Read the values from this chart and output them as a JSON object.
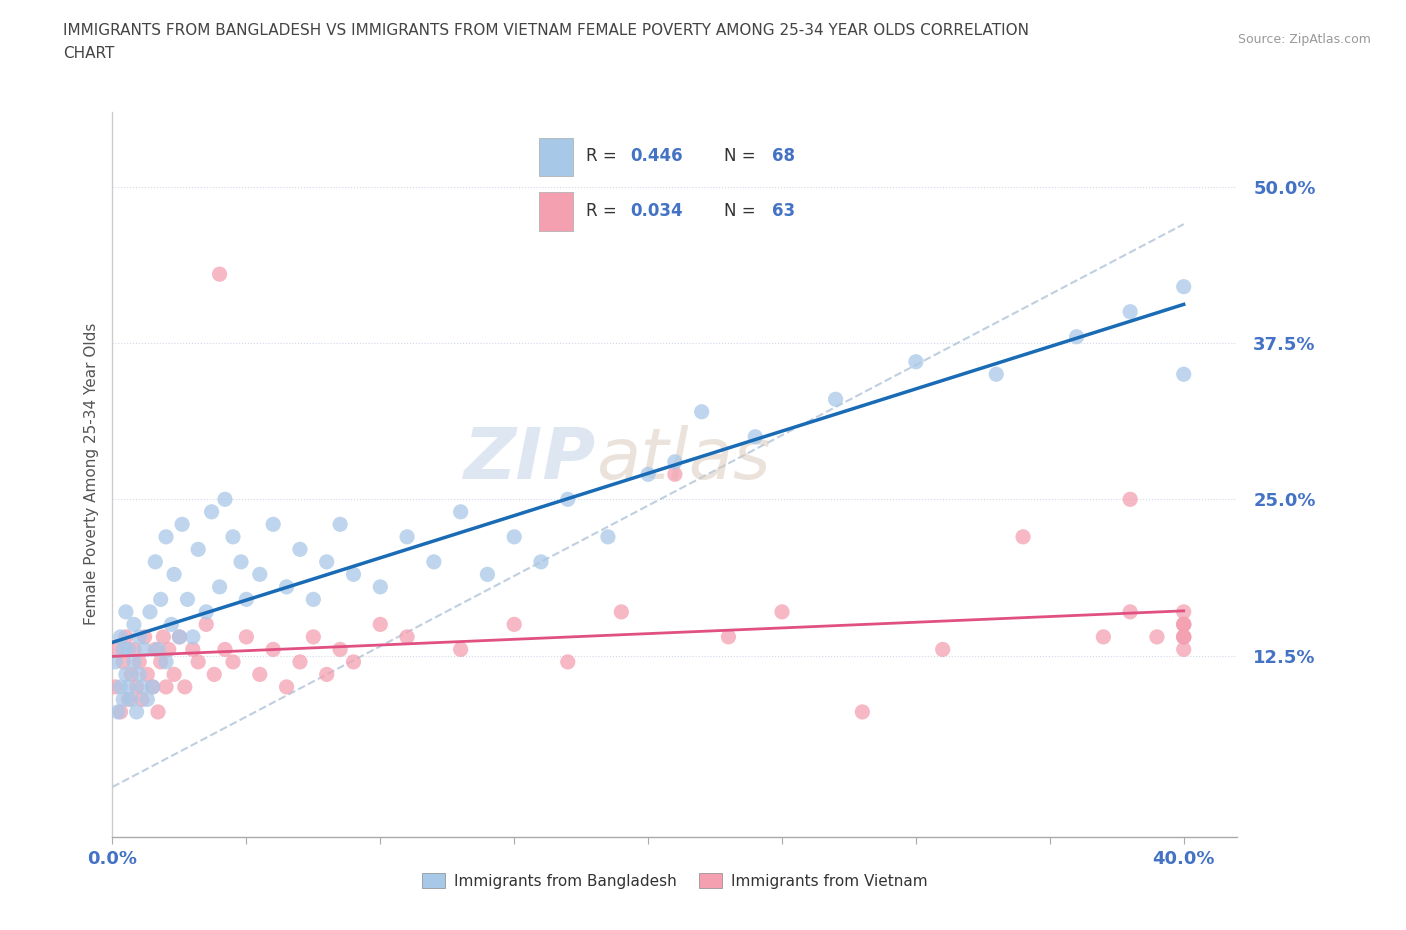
{
  "title_line1": "IMMIGRANTS FROM BANGLADESH VS IMMIGRANTS FROM VIETNAM FEMALE POVERTY AMONG 25-34 YEAR OLDS CORRELATION",
  "title_line2": "CHART",
  "source_text": "Source: ZipAtlas.com",
  "ylabel": "Female Poverty Among 25-34 Year Olds",
  "xlim": [
    0.0,
    0.42
  ],
  "ylim": [
    -0.02,
    0.56
  ],
  "ytick_positions": [
    0.0,
    0.125,
    0.25,
    0.375,
    0.5
  ],
  "yticklabels": [
    "",
    "12.5%",
    "25.0%",
    "37.5%",
    "50.0%"
  ],
  "xtick_positions": [
    0.0,
    0.05,
    0.1,
    0.15,
    0.2,
    0.25,
    0.3,
    0.35,
    0.4
  ],
  "xticklabels": [
    "0.0%",
    "",
    "",
    "",
    "",
    "",
    "",
    "",
    "40.0%"
  ],
  "bangladesh_color": "#a8c8e8",
  "vietnam_color": "#f4a0b0",
  "bangladesh_line_color": "#1a6bb5",
  "vietnam_line_color": "#e05080",
  "dash_line_color": "#b0c4d8",
  "R_bangladesh": "0.446",
  "N_bangladesh": "68",
  "R_vietnam": "0.034",
  "N_vietnam": "63",
  "legend_label_bangladesh": "Immigrants from Bangladesh",
  "legend_label_vietnam": "Immigrants from Vietnam",
  "watermark_zip": "ZIP",
  "watermark_atlas": "atlas",
  "tick_color": "#4472c4",
  "axis_color": "#4472c4",
  "bd_x": [
    0.001,
    0.002,
    0.003,
    0.003,
    0.004,
    0.004,
    0.005,
    0.005,
    0.006,
    0.006,
    0.007,
    0.008,
    0.008,
    0.009,
    0.01,
    0.01,
    0.011,
    0.012,
    0.013,
    0.014,
    0.015,
    0.016,
    0.017,
    0.018,
    0.02,
    0.02,
    0.022,
    0.023,
    0.025,
    0.026,
    0.028,
    0.03,
    0.032,
    0.035,
    0.037,
    0.04,
    0.042,
    0.045,
    0.048,
    0.05,
    0.055,
    0.06,
    0.065,
    0.07,
    0.075,
    0.08,
    0.085,
    0.09,
    0.1,
    0.11,
    0.12,
    0.13,
    0.14,
    0.15,
    0.16,
    0.17,
    0.185,
    0.2,
    0.21,
    0.22,
    0.24,
    0.27,
    0.3,
    0.33,
    0.36,
    0.38,
    0.4,
    0.4
  ],
  "bd_y": [
    0.12,
    0.08,
    0.1,
    0.14,
    0.09,
    0.13,
    0.11,
    0.16,
    0.1,
    0.13,
    0.09,
    0.12,
    0.15,
    0.08,
    0.11,
    0.14,
    0.1,
    0.13,
    0.09,
    0.16,
    0.1,
    0.2,
    0.13,
    0.17,
    0.12,
    0.22,
    0.15,
    0.19,
    0.14,
    0.23,
    0.17,
    0.14,
    0.21,
    0.16,
    0.24,
    0.18,
    0.25,
    0.22,
    0.2,
    0.17,
    0.19,
    0.23,
    0.18,
    0.21,
    0.17,
    0.2,
    0.23,
    0.19,
    0.18,
    0.22,
    0.2,
    0.24,
    0.19,
    0.22,
    0.2,
    0.25,
    0.22,
    0.27,
    0.28,
    0.32,
    0.3,
    0.33,
    0.36,
    0.35,
    0.38,
    0.4,
    0.35,
    0.42
  ],
  "vn_x": [
    0.001,
    0.002,
    0.003,
    0.004,
    0.005,
    0.006,
    0.007,
    0.008,
    0.009,
    0.01,
    0.011,
    0.012,
    0.013,
    0.015,
    0.016,
    0.017,
    0.018,
    0.019,
    0.02,
    0.021,
    0.023,
    0.025,
    0.027,
    0.03,
    0.032,
    0.035,
    0.038,
    0.04,
    0.042,
    0.045,
    0.05,
    0.055,
    0.06,
    0.065,
    0.07,
    0.075,
    0.08,
    0.085,
    0.09,
    0.1,
    0.11,
    0.13,
    0.15,
    0.17,
    0.19,
    0.21,
    0.23,
    0.25,
    0.28,
    0.31,
    0.34,
    0.37,
    0.38,
    0.38,
    0.39,
    0.4,
    0.4,
    0.4,
    0.4,
    0.4,
    0.4,
    0.4,
    0.4
  ],
  "vn_y": [
    0.1,
    0.13,
    0.08,
    0.12,
    0.14,
    0.09,
    0.11,
    0.13,
    0.1,
    0.12,
    0.09,
    0.14,
    0.11,
    0.1,
    0.13,
    0.08,
    0.12,
    0.14,
    0.1,
    0.13,
    0.11,
    0.14,
    0.1,
    0.13,
    0.12,
    0.15,
    0.11,
    0.43,
    0.13,
    0.12,
    0.14,
    0.11,
    0.13,
    0.1,
    0.12,
    0.14,
    0.11,
    0.13,
    0.12,
    0.15,
    0.14,
    0.13,
    0.15,
    0.12,
    0.16,
    0.27,
    0.14,
    0.16,
    0.08,
    0.13,
    0.22,
    0.14,
    0.16,
    0.25,
    0.14,
    0.13,
    0.15,
    0.14,
    0.16,
    0.15,
    0.14,
    0.14,
    0.15
  ]
}
